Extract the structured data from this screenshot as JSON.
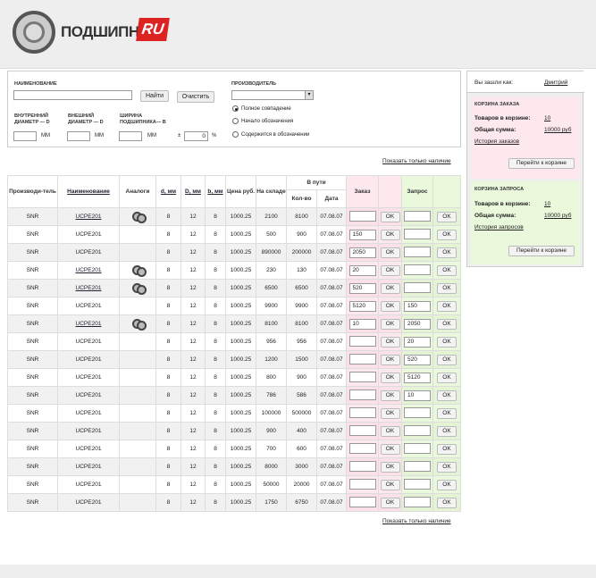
{
  "header": {
    "logo_text": "ПОДШИПНИК",
    "logo_ru": "RU"
  },
  "search": {
    "name_label": "НАИМЕНОВАНИЕ",
    "find_button": "Найти",
    "clear_button": "Очистить",
    "manufacturer_label": "ПРОИЗВОДИТЕЛЬ",
    "radio_options": [
      "Полное совпадение",
      "Начало обозначения",
      "Содержится в обозначении"
    ],
    "inner_label": "ВНУТРЕННИЙ ДИАМЕТР — d",
    "outer_label": "ВНЕШНИЙ ДИАМЕТР — D",
    "width_label": "ШИРИНА ПОДШИПНИКА— b",
    "unit_mm": "ММ",
    "tolerance_sign": "±",
    "tolerance_value": "0",
    "percent": "%"
  },
  "show_in_stock": "Показать только наличие",
  "sidebar": {
    "user_label": "Вы зашли как:",
    "user_name": "Дмитрий",
    "order": {
      "title": "КОРЗИНА ЗАКАЗА",
      "items_label": "Товаров в корзине:",
      "items_value": "10",
      "sum_label": "Общая сумма:",
      "sum_value": "10000 руб",
      "history": "История заказов",
      "button": "Перейти к корзине"
    },
    "request": {
      "title": "КОРЗИНА ЗАПРОСА",
      "items_label": "Товаров в корзине:",
      "items_value": "10",
      "sum_label": "Общая сумма:",
      "sum_value": "10000 руб",
      "history": "История запросов",
      "button": "Перейти к корзине"
    }
  },
  "table": {
    "headers": {
      "manufacturer": "Производи-тель",
      "name": "Наименование",
      "analogs": "Аналоги",
      "d": "d, мм",
      "D": "D, мм",
      "b": "b, мм",
      "price": "Цена руб.",
      "stock": "На складе",
      "transit": "В пути",
      "qty": "Кол-во",
      "date": "Дата",
      "order": "Заказ",
      "request": "Запрос"
    },
    "ok": "OK",
    "rows": [
      {
        "m": "SNR",
        "n": "UCPE201",
        "a": true,
        "d": "8",
        "D": "12",
        "b": "8",
        "p": "1000.25",
        "s": "2100",
        "q": "8100",
        "dt": "07.08.07",
        "o": "",
        "r": ""
      },
      {
        "m": "SNR",
        "n": "UCPE201",
        "a": false,
        "d": "8",
        "D": "12",
        "b": "8",
        "p": "1000.25",
        "s": "500",
        "q": "900",
        "dt": "07.08.07",
        "o": "150",
        "r": ""
      },
      {
        "m": "SNR",
        "n": "UCPE201",
        "a": false,
        "d": "8",
        "D": "12",
        "b": "8",
        "p": "1000.25",
        "s": "890000",
        "q": "200000",
        "dt": "07.08.07",
        "o": "2050",
        "r": ""
      },
      {
        "m": "SNR",
        "n": "UCPE201",
        "a": true,
        "d": "8",
        "D": "12",
        "b": "8",
        "p": "1000.25",
        "s": "230",
        "q": "130",
        "dt": "07.08.07",
        "o": "20",
        "r": ""
      },
      {
        "m": "SNR",
        "n": "UCPE201",
        "a": true,
        "d": "8",
        "D": "12",
        "b": "8",
        "p": "1000.25",
        "s": "6500",
        "q": "6500",
        "dt": "07.08.07",
        "o": "520",
        "r": ""
      },
      {
        "m": "SNR",
        "n": "UCPE201",
        "a": false,
        "d": "8",
        "D": "12",
        "b": "8",
        "p": "1000.25",
        "s": "9900",
        "q": "9900",
        "dt": "07.08.07",
        "o": "5120",
        "r": "150"
      },
      {
        "m": "SNR",
        "n": "UCPE201",
        "a": true,
        "d": "8",
        "D": "12",
        "b": "8",
        "p": "1000.25",
        "s": "8100",
        "q": "8100",
        "dt": "07.08.07",
        "o": "10",
        "r": "2050"
      },
      {
        "m": "SNR",
        "n": "UCPE201",
        "a": false,
        "d": "8",
        "D": "12",
        "b": "8",
        "p": "1000.25",
        "s": "956",
        "q": "956",
        "dt": "07.08.07",
        "o": "",
        "r": "20"
      },
      {
        "m": "SNR",
        "n": "UCPE201",
        "a": false,
        "d": "8",
        "D": "12",
        "b": "8",
        "p": "1000.25",
        "s": "1200",
        "q": "1500",
        "dt": "07.08.07",
        "o": "",
        "r": "520"
      },
      {
        "m": "SNR",
        "n": "UCPE201",
        "a": false,
        "d": "8",
        "D": "12",
        "b": "8",
        "p": "1000.25",
        "s": "800",
        "q": "900",
        "dt": "07.08.07",
        "o": "",
        "r": "5120"
      },
      {
        "m": "SNR",
        "n": "UCPE201",
        "a": false,
        "d": "8",
        "D": "12",
        "b": "8",
        "p": "1000.25",
        "s": "786",
        "q": "586",
        "dt": "07.08.07",
        "o": "",
        "r": "10"
      },
      {
        "m": "SNR",
        "n": "UCPE201",
        "a": false,
        "d": "8",
        "D": "12",
        "b": "8",
        "p": "1000.25",
        "s": "100000",
        "q": "500000",
        "dt": "07.08.07",
        "o": "",
        "r": ""
      },
      {
        "m": "SNR",
        "n": "UCPE201",
        "a": false,
        "d": "8",
        "D": "12",
        "b": "8",
        "p": "1000.25",
        "s": "900",
        "q": "400",
        "dt": "07.08.07",
        "o": "",
        "r": ""
      },
      {
        "m": "SNR",
        "n": "UCPE201",
        "a": false,
        "d": "8",
        "D": "12",
        "b": "8",
        "p": "1000.25",
        "s": "700",
        "q": "600",
        "dt": "07.08.07",
        "o": "",
        "r": ""
      },
      {
        "m": "SNR",
        "n": "UCPE201",
        "a": false,
        "d": "8",
        "D": "12",
        "b": "8",
        "p": "1000.25",
        "s": "8000",
        "q": "3000",
        "dt": "07.08.07",
        "o": "",
        "r": ""
      },
      {
        "m": "SNR",
        "n": "UCPE201",
        "a": false,
        "d": "8",
        "D": "12",
        "b": "8",
        "p": "1000.25",
        "s": "50000",
        "q": "20000",
        "dt": "07.08.07",
        "o": "",
        "r": ""
      },
      {
        "m": "SNR",
        "n": "UCPE201",
        "a": false,
        "d": "8",
        "D": "12",
        "b": "8",
        "p": "1000.25",
        "s": "1750",
        "q": "6750",
        "dt": "07.08.07",
        "o": "",
        "r": ""
      }
    ]
  }
}
